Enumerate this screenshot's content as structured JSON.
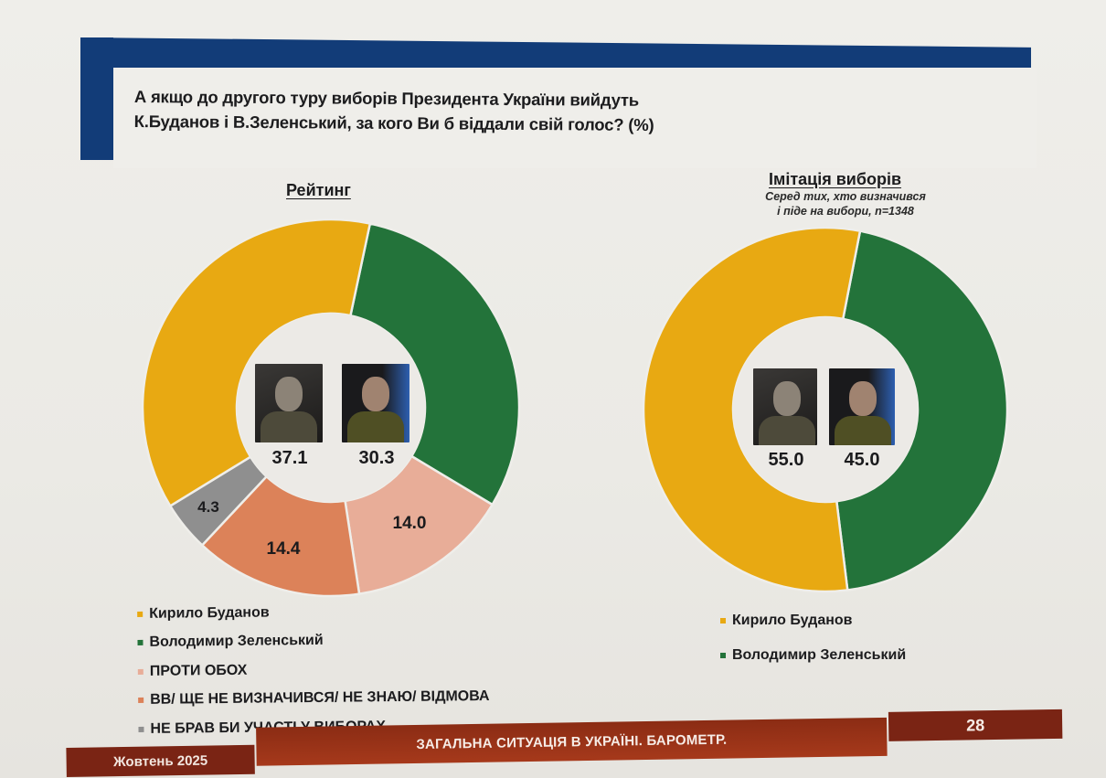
{
  "question": {
    "line1": "А якщо до другого туру виборів Президента України вийдуть",
    "line2": "К.Буданов і В.Зеленський, за кого Ви б віддали свій голос? (%)"
  },
  "colors": {
    "header_blue": "#123c78",
    "budanov_yellow": "#e8a912",
    "zelensky_green": "#23733a",
    "against_both_pink": "#e8ad98",
    "undecided_orange": "#dc8259",
    "not_voting_gray": "#8f8f8f",
    "footer_red": "#8b2c14"
  },
  "left_chart": {
    "title": "Рейтинг",
    "center_values": {
      "budanov": "37.1",
      "zelensky": "30.3"
    },
    "slice_labels": {
      "against_both": "14.0",
      "undecided": "14.4",
      "not_voting": "4.3"
    },
    "legend": [
      {
        "label": "Кирило Буданов",
        "color": "#e8a912"
      },
      {
        "label": "Володимир Зеленський",
        "color": "#23733a"
      },
      {
        "label": "ПРОТИ ОБОХ",
        "color": "#e8ad98"
      },
      {
        "label": "ВВ/ ЩЕ НЕ ВИЗНАЧИВСЯ/ НЕ ЗНАЮ/ ВІДМОВА",
        "color": "#dc8259"
      },
      {
        "label": "НЕ БРАВ БИ УЧАСТІ У ВИБОРАХ",
        "color": "#8f8f8f"
      }
    ]
  },
  "right_chart": {
    "title": "Імітація виборів",
    "subtitle_line1": "Серед тих, хто визначився",
    "subtitle_line2": "і піде на вибори, n=1348",
    "center_values": {
      "budanov": "55.0",
      "zelensky": "45.0"
    },
    "legend": [
      {
        "label": "Кирило Буданов",
        "color": "#e8a912"
      },
      {
        "label": "Володимир Зеленський",
        "color": "#23733a"
      }
    ]
  },
  "footer": {
    "month": "Жовтень 2025",
    "title": "ЗАГАЛЬНА СИТУАЦІЯ В УКРАЇНІ. БАРОМЕТР.",
    "page": "28"
  },
  "chart_data": [
    {
      "type": "pie",
      "subtype": "donut",
      "title": "Рейтинг",
      "question": "А якщо до другого туру виборів Президента України вийдуть К.Буданов і В.Зеленський, за кого Ви б віддали свій голос? (%)",
      "categories": [
        "Володимир Зеленський",
        "ПРОТИ ОБОХ",
        "ВВ/ ЩЕ НЕ ВИЗНАЧИВСЯ/ НЕ ЗНАЮ/ ВІДМОВА",
        "НЕ БРАВ БИ УЧАСТІ У ВИБОРАХ",
        "Кирило Буданов"
      ],
      "values": [
        30.3,
        14.0,
        14.4,
        4.3,
        37.1
      ],
      "colors": [
        "#23733a",
        "#e8ad98",
        "#dc8259",
        "#8f8f8f",
        "#e8a912"
      ],
      "unit": "%",
      "legend_position": "bottom"
    },
    {
      "type": "pie",
      "subtype": "donut",
      "title": "Імітація виборів",
      "subtitle": "Серед тих, хто визначився і піде на вибори, n=1348",
      "categories": [
        "Володимир Зеленський",
        "Кирило Буданов"
      ],
      "values": [
        45.0,
        55.0
      ],
      "colors": [
        "#23733a",
        "#e8a912"
      ],
      "unit": "%",
      "legend_position": "bottom"
    }
  ]
}
